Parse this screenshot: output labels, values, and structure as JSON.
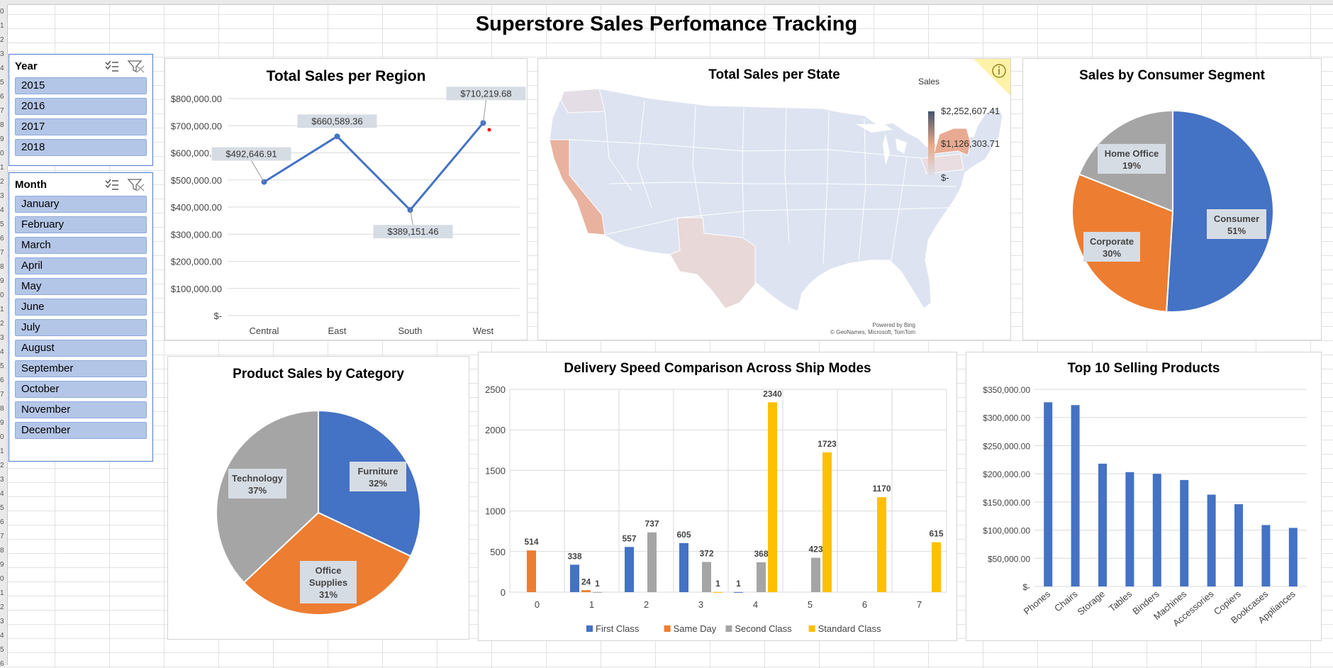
{
  "dashboard": {
    "title": "Superstore Sales Perfomance Tracking"
  },
  "row_numbers": [
    "0",
    "1",
    "2",
    "3",
    "4",
    "5",
    "6",
    "7",
    "8",
    "9",
    "0",
    "1",
    "2",
    "3",
    "4",
    "5",
    "6",
    "7",
    "8",
    "9",
    "0",
    "1",
    "2",
    "3",
    "4",
    "5",
    "6",
    "7",
    "8",
    "9",
    "0",
    "1",
    "2",
    "3",
    "4",
    "5",
    "6",
    "7",
    "8",
    "9",
    "0",
    "1",
    "2",
    "3",
    "4",
    "5",
    "6"
  ],
  "slicers": {
    "year": {
      "header": "Year",
      "items": [
        "2015",
        "2016",
        "2017",
        "2018"
      ]
    },
    "month": {
      "header": "Month",
      "items": [
        "January",
        "February",
        "March",
        "April",
        "May",
        "June",
        "July",
        "August",
        "September",
        "October",
        "November",
        "December"
      ]
    }
  },
  "map": {
    "title": "Total Sales per State",
    "legend_title": "Sales",
    "legend_labels": [
      "$2,252,607.41",
      "$1,126,303.71",
      "$-"
    ],
    "credit_1": "Powered by Bing",
    "credit_2": "© GeoNames, Microsoft, TomTom",
    "colors": {
      "low": "#dde3f1",
      "mid": "#e8a888",
      "high": "#44546a"
    }
  },
  "chart_data": [
    {
      "id": "region",
      "type": "line",
      "title": "Total Sales per Region",
      "categories": [
        "Central",
        "East",
        "South",
        "West"
      ],
      "values": [
        492646.91,
        660589.36,
        389151.46,
        710219.68
      ],
      "data_labels": [
        "$492,646.91",
        "$660,589.36",
        "$389,151.46",
        "$710,219.68"
      ],
      "yticks": [
        "$-",
        "$100,000.00",
        "$200,000.00",
        "$300,000.00",
        "$400,000.00",
        "$500,000.00",
        "$600,000.00",
        "$700,000.00",
        "$800,000.00"
      ],
      "ylim": [
        0,
        800000
      ],
      "color": "#4472c4"
    },
    {
      "id": "segment",
      "type": "pie",
      "title": "Sales by Consumer Segment",
      "slices": [
        {
          "label": "Consumer",
          "pct_label": "51%",
          "value": 51,
          "color": "#4472c4"
        },
        {
          "label": "Corporate",
          "pct_label": "30%",
          "value": 30,
          "color": "#ed7d31"
        },
        {
          "label": "Home Office",
          "pct_label": "19%",
          "value": 19,
          "color": "#a5a5a5"
        }
      ]
    },
    {
      "id": "category",
      "type": "pie",
      "title": "Product Sales by Category",
      "slices": [
        {
          "label": "Furniture",
          "pct_label": "32%",
          "value": 32,
          "color": "#4472c4"
        },
        {
          "label": "Office Supplies",
          "pct_label": "31%",
          "value": 31,
          "color": "#ed7d31"
        },
        {
          "label": "Technology",
          "pct_label": "37%",
          "value": 37,
          "color": "#a5a5a5"
        }
      ]
    },
    {
      "id": "delivery",
      "type": "bar",
      "title": "Delivery Speed Comparison Across Ship Modes",
      "categories": [
        "0",
        "1",
        "2",
        "3",
        "4",
        "5",
        "6",
        "7"
      ],
      "series": [
        {
          "name": "First Class",
          "color": "#4472c4",
          "values": [
            null,
            338,
            557,
            605,
            1,
            null,
            null,
            null
          ]
        },
        {
          "name": "Same Day",
          "color": "#ed7d31",
          "values": [
            514,
            24,
            null,
            null,
            null,
            null,
            null,
            null
          ]
        },
        {
          "name": "Second Class",
          "color": "#a5a5a5",
          "values": [
            null,
            1,
            737,
            372,
            368,
            423,
            null,
            null
          ]
        },
        {
          "name": "Standard Class",
          "color": "#ffc000",
          "values": [
            null,
            null,
            null,
            1,
            2340,
            1723,
            1170,
            615
          ]
        }
      ],
      "yticks": [
        "0",
        "500",
        "1000",
        "1500",
        "2000",
        "2500"
      ],
      "ylim": [
        0,
        2500
      ]
    },
    {
      "id": "products",
      "type": "bar",
      "title": "Top 10 Selling Products",
      "categories": [
        "Phones",
        "Chairs",
        "Storage",
        "Tables",
        "Binders",
        "Machines",
        "Accessories",
        "Copiers",
        "Bookcases",
        "Appliances"
      ],
      "values": [
        327000,
        322000,
        218000,
        203000,
        200000,
        189000,
        163000,
        146000,
        109000,
        104000
      ],
      "yticks": [
        "$-",
        "$50,000.00",
        "$100,000.00",
        "$150,000.00",
        "$200,000.00",
        "$250,000.00",
        "$300,000.00",
        "$350,000.00"
      ],
      "ylim": [
        0,
        350000
      ],
      "color": "#4472c4"
    }
  ]
}
